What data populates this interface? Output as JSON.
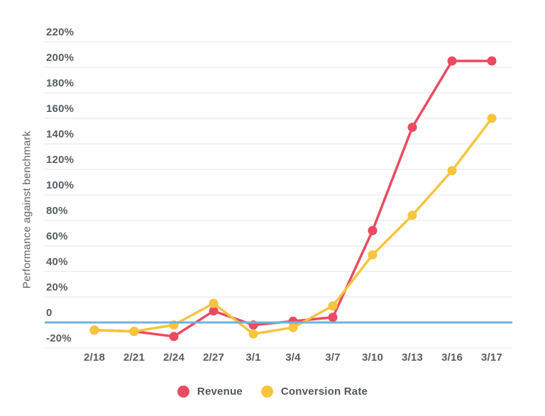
{
  "chart_data": {
    "type": "line",
    "title": "",
    "xlabel": "",
    "ylabel": "Performance against benchmark",
    "ylim": [
      -20,
      220
    ],
    "grid": true,
    "legend_position": "bottom",
    "categories": [
      "2/18",
      "2/21",
      "2/24",
      "2/27",
      "3/1",
      "3/4",
      "3/7",
      "3/10",
      "3/13",
      "3/16",
      "3/17"
    ],
    "yticks": [
      {
        "value": 220,
        "label": "220%"
      },
      {
        "value": 200,
        "label": "200%"
      },
      {
        "value": 180,
        "label": "180%"
      },
      {
        "value": 160,
        "label": "160%"
      },
      {
        "value": 140,
        "label": "140%"
      },
      {
        "value": 120,
        "label": "120%"
      },
      {
        "value": 100,
        "label": "100%"
      },
      {
        "value": 80,
        "label": "80%"
      },
      {
        "value": 60,
        "label": "60%"
      },
      {
        "value": 40,
        "label": "40%"
      },
      {
        "value": 20,
        "label": "20%"
      },
      {
        "value": 0,
        "label": "0"
      },
      {
        "value": -20,
        "label": "-20%"
      }
    ],
    "series": [
      {
        "name": "Revenue",
        "color": "#e94b61",
        "values": [
          -6,
          -7,
          -11,
          9,
          -2,
          1,
          4,
          72,
          153,
          205,
          205
        ]
      },
      {
        "name": "Conversion Rate",
        "color": "#f5c53d",
        "values": [
          -6,
          -7,
          -2,
          15,
          -9,
          -4,
          13,
          53,
          84,
          119,
          160
        ]
      }
    ],
    "benchmark_line": {
      "value": 0,
      "color": "#6fb3e0"
    }
  },
  "colors": {
    "gridline": "#e6e6e6",
    "tick_text": "#565d61",
    "axis_title_text": "#5d6468",
    "legend_text": "#52575a",
    "background": "#ffffff"
  }
}
